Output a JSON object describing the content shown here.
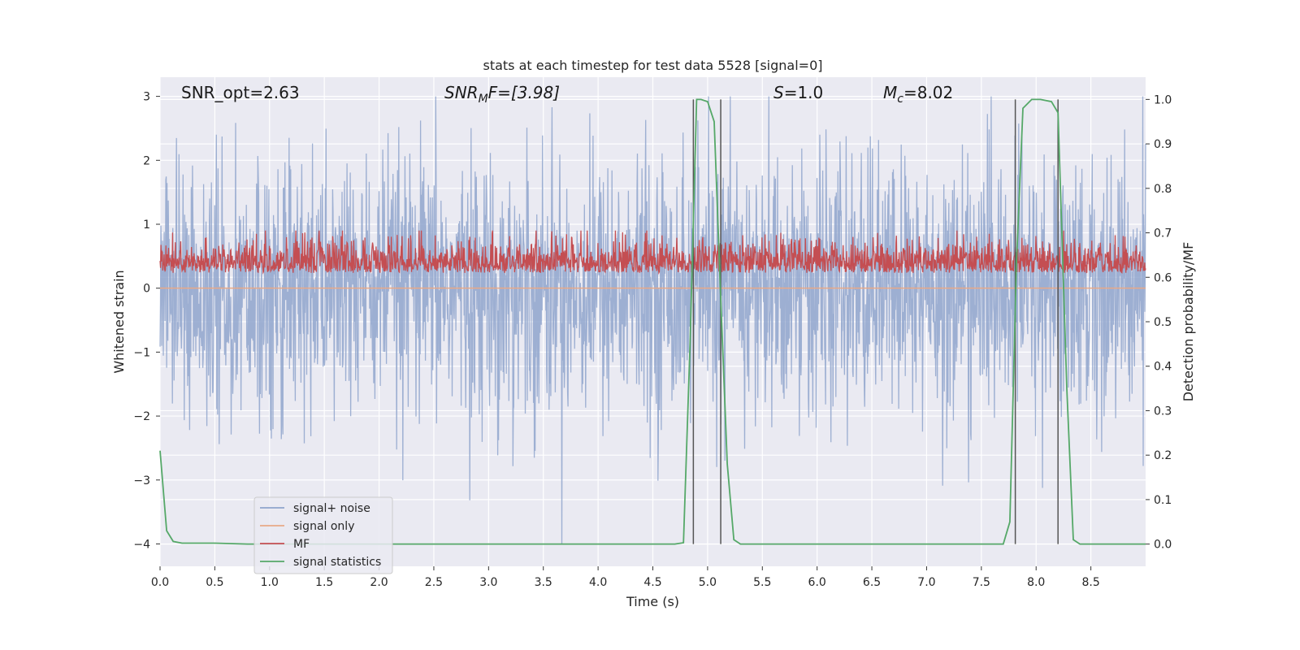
{
  "chart_data": {
    "type": "line",
    "title": "stats at each timestep for test data 5528 [signal=0]",
    "xlabel": "Time (s)",
    "ylabel_left": "Whitened strain",
    "ylabel_right": "Detection probability/MF",
    "xlim": [
      0,
      9.0
    ],
    "ylim_left": [
      -4.35,
      3.3
    ],
    "ylim_right": [
      -0.05,
      1.05
    ],
    "x_ticks": [
      0.0,
      0.5,
      1.0,
      1.5,
      2.0,
      2.5,
      3.0,
      3.5,
      4.0,
      4.5,
      5.0,
      5.5,
      6.0,
      6.5,
      7.0,
      7.5,
      8.0,
      8.5
    ],
    "x_tick_labels": [
      "0.0",
      "0.5",
      "1.0",
      "1.5",
      "2.0",
      "2.5",
      "3.0",
      "3.5",
      "4.0",
      "4.5",
      "5.0",
      "5.5",
      "6.0",
      "6.5",
      "7.0",
      "7.5",
      "8.0",
      "8.5"
    ],
    "y_left_ticks": [
      3,
      2,
      1,
      0,
      -1,
      -2,
      -3,
      -4
    ],
    "y_left_tick_labels": [
      "3",
      "2",
      "1",
      "0",
      "−1",
      "−2",
      "−3",
      "−4"
    ],
    "y_right_ticks": [
      1.0,
      0.9,
      0.8,
      0.7,
      0.6,
      0.5,
      0.4,
      0.3,
      0.2,
      0.1,
      0.0
    ],
    "y_right_tick_labels": [
      "1.0",
      "0.9",
      "0.8",
      "0.7",
      "0.6",
      "0.5",
      "0.4",
      "0.3",
      "0.2",
      "0.1",
      "0.0"
    ],
    "annotations": {
      "snr_opt": "SNR_opt=2.63",
      "snr_mf_prefix": "SNR",
      "snr_mf_sub": "M",
      "snr_mf_rest": "F=[3.98]",
      "s_italic": "S",
      "s_rest": "=1.0",
      "mc_italic": "M",
      "mc_sub": "c",
      "mc_rest": "=8.02"
    },
    "series": [
      {
        "name": "signal+ noise",
        "color": "#8fa4cc",
        "axis": "left",
        "note": "noisy whitened strain, roughly ±2 with spikes to ±3"
      },
      {
        "name": "signal only",
        "color": "#e8a987",
        "axis": "left",
        "values_const": 0.0
      },
      {
        "name": "MF",
        "color": "#c44e52",
        "axis": "right",
        "note": "matched filter output between ~0.6 and ~0.7"
      },
      {
        "name": "signal statistics",
        "color": "#55a868",
        "axis": "right",
        "x": [
          0.0,
          0.06,
          0.12,
          0.2,
          0.3,
          0.5,
          0.8,
          4.7,
          4.78,
          4.84,
          4.9,
          4.94,
          5.0,
          5.06,
          5.12,
          5.18,
          5.24,
          5.3,
          5.5,
          7.7,
          7.76,
          7.82,
          7.88,
          7.96,
          8.04,
          8.14,
          8.2,
          8.28,
          8.34,
          8.4,
          8.8,
          9.0
        ],
        "values": [
          0.21,
          0.03,
          0.006,
          0.002,
          0.002,
          0.002,
          0.0,
          0.0,
          0.003,
          0.45,
          1.0,
          1.0,
          0.995,
          0.95,
          0.55,
          0.18,
          0.01,
          0.0,
          0.0,
          0.0,
          0.05,
          0.63,
          0.98,
          1.0,
          1.0,
          0.995,
          0.97,
          0.35,
          0.01,
          0.0,
          0.0,
          0.0
        ]
      }
    ],
    "vertical_lines": [
      4.87,
      5.12,
      7.81,
      8.2
    ],
    "legend": [
      "signal+ noise",
      "signal only",
      "MF",
      "signal statistics"
    ],
    "legend_location": "lower-left",
    "grid": true
  }
}
